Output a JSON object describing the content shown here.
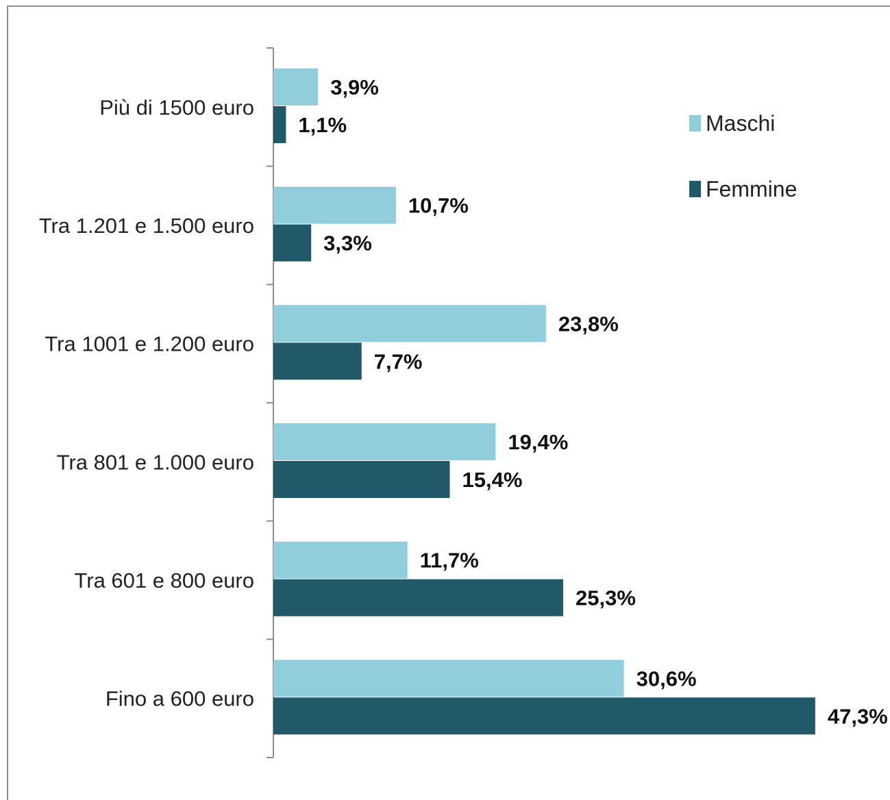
{
  "chart_data": {
    "type": "bar",
    "orientation": "horizontal",
    "categories": [
      "Più di 1500 euro",
      "Tra 1.201 e 1.500 euro",
      "Tra 1001 e 1.200 euro",
      "Tra 801 e 1.000 euro",
      "Tra 601 e 800 euro",
      "Fino a 600 euro"
    ],
    "series": [
      {
        "name": "Maschi",
        "color": "#92cddc",
        "values": [
          3.9,
          10.7,
          23.8,
          19.4,
          11.7,
          30.6
        ],
        "labels": [
          "3,9%",
          "10,7%",
          "23,8%",
          "19,4%",
          "11,7%",
          "30,6%"
        ]
      },
      {
        "name": "Femmine",
        "color": "#215968",
        "values": [
          1.1,
          3.3,
          7.7,
          15.4,
          25.3,
          47.3
        ],
        "labels": [
          "1,1%",
          "3,3%",
          "7,7%",
          "15,4%",
          "25,3%",
          "47,3%"
        ]
      }
    ],
    "legend_position": "top-right",
    "grid": false,
    "xlim": [
      0,
      50
    ]
  }
}
